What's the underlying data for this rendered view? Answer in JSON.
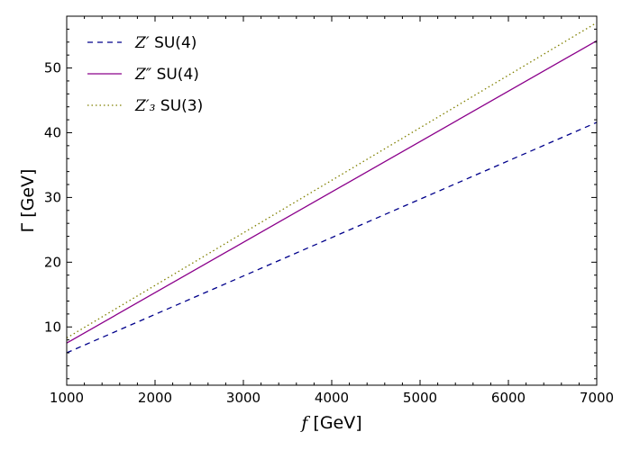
{
  "chart_data": {
    "type": "line",
    "xlabel": {
      "symbol": "f",
      "text": " [GeV]"
    },
    "ylabel": {
      "symbol": "Γ",
      "text": " [GeV]"
    },
    "xlim": [
      1000,
      7000
    ],
    "ylim": [
      1,
      58
    ],
    "xticks": [
      1000,
      2000,
      3000,
      4000,
      5000,
      6000,
      7000
    ],
    "yticks": [
      10,
      20,
      30,
      40,
      50
    ],
    "legend_position": "top-left",
    "grid": false,
    "series": [
      {
        "symbol": "Z′",
        "name": " SU(4)",
        "style": "dashed",
        "color": "#00008b",
        "x": [
          1000,
          7000
        ],
        "y": [
          6.0,
          41.6
        ]
      },
      {
        "symbol": "Z″",
        "name": " SU(4)",
        "style": "solid",
        "color": "#8b008b",
        "x": [
          1000,
          7000
        ],
        "y": [
          7.5,
          54.2
        ]
      },
      {
        "symbol": "Z′₃",
        "name": " SU(3)",
        "style": "dotted",
        "color": "#808000",
        "x": [
          1000,
          7000
        ],
        "y": [
          8.3,
          57.0
        ]
      }
    ]
  }
}
